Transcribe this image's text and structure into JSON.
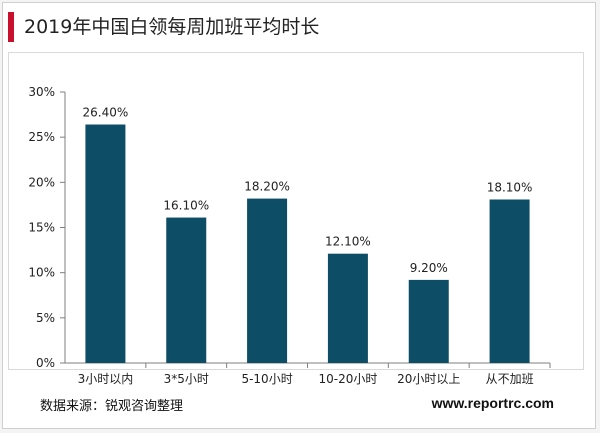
{
  "header": {
    "title": "2019年中国白领每周加班平均时长"
  },
  "footer": {
    "source": "数据来源：锐观咨询整理",
    "website": "www.reportrc.com"
  },
  "colors": {
    "bar": "#0e4d66",
    "accent": "#c8102e"
  },
  "chart_data": {
    "type": "bar",
    "title": "2019年中国白领每周加班平均时长",
    "categories": [
      "3小时以内",
      "3*5小时",
      "5-10小时",
      "10-20小时",
      "20小时以上",
      "从不加班"
    ],
    "values": [
      26.4,
      16.1,
      18.2,
      12.1,
      9.2,
      18.1
    ],
    "value_labels": [
      "26.40%",
      "16.10%",
      "18.20%",
      "12.10%",
      "9.20%",
      "18.10%"
    ],
    "ylim": [
      0,
      30
    ],
    "yticks": [
      0,
      5,
      10,
      15,
      20,
      25,
      30
    ],
    "ytick_labels": [
      "0%",
      "5%",
      "10%",
      "15%",
      "20%",
      "25%",
      "30%"
    ],
    "xlabel": "",
    "ylabel": "",
    "grid": false,
    "legend": "none"
  }
}
